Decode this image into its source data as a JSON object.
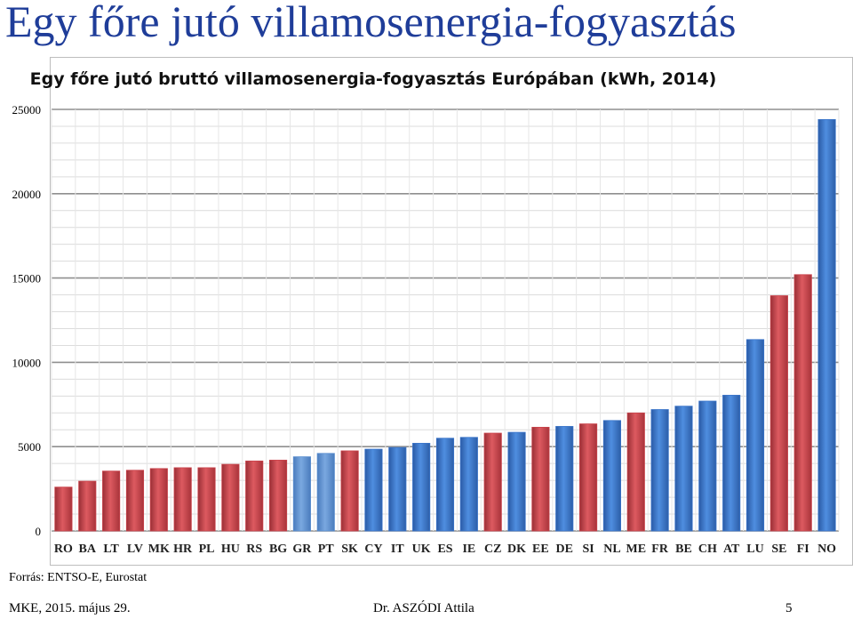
{
  "slide": {
    "title": "Egy főre jutó villamosenergia-fogyasztás",
    "source": "Forrás: ENTSO-E, Eurostat",
    "footer_left": "MKE, 2015. május 29.",
    "footer_center": "Dr. ASZÓDI Attila",
    "page_number": "5"
  },
  "colors": {
    "red": "#c9424a",
    "blue": "#3a74c9",
    "light_blue": "#5b8fd0"
  },
  "chart_data": {
    "type": "bar",
    "title": "Egy főre jutó bruttó villamosenergia-fogyasztás Európában (kWh, 2014)",
    "xlabel": "",
    "ylabel": "",
    "ylim": [
      0,
      25000
    ],
    "yticks": [
      0,
      5000,
      10000,
      15000,
      20000,
      25000
    ],
    "grid": true,
    "categories": [
      "RO",
      "BA",
      "LT",
      "LV",
      "MK",
      "HR",
      "PL",
      "HU",
      "RS",
      "BG",
      "GR",
      "PT",
      "SK",
      "CY",
      "IT",
      "UK",
      "ES",
      "IE",
      "CZ",
      "DK",
      "EE",
      "DE",
      "SI",
      "NL",
      "ME",
      "FR",
      "BE",
      "CH",
      "AT",
      "LU",
      "SE",
      "FI",
      "NO"
    ],
    "values": [
      2600,
      2950,
      3550,
      3600,
      3700,
      3750,
      3750,
      3950,
      4150,
      4200,
      4400,
      4600,
      4750,
      4850,
      4950,
      5200,
      5500,
      5550,
      5800,
      5850,
      6150,
      6200,
      6350,
      6550,
      7000,
      7200,
      7400,
      7700,
      8050,
      11350,
      13950,
      15200,
      24400
    ],
    "bar_colors": [
      "red",
      "red",
      "red",
      "red",
      "red",
      "red",
      "red",
      "red",
      "red",
      "red",
      "light_blue",
      "light_blue",
      "red",
      "blue",
      "blue",
      "blue",
      "blue",
      "blue",
      "red",
      "blue",
      "red",
      "blue",
      "red",
      "blue",
      "red",
      "blue",
      "blue",
      "blue",
      "blue",
      "blue",
      "red",
      "red",
      "blue"
    ]
  }
}
